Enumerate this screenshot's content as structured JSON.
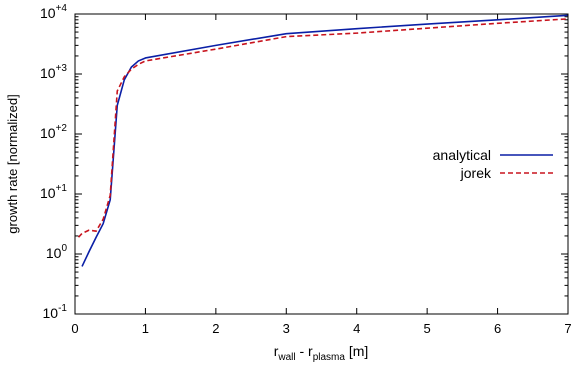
{
  "chart_data": {
    "type": "line",
    "title": "",
    "xlabel": {
      "base": "r",
      "sub1": "wall",
      "mid": " - r",
      "sub2": "plasma",
      "unit": " [m]"
    },
    "ylabel": "growth rate [normalized]",
    "xlim": [
      0,
      7
    ],
    "ylim": [
      0.1,
      10000
    ],
    "yscale": "log",
    "xticks": [
      "0",
      "1",
      "2",
      "3",
      "4",
      "5",
      "6",
      "7"
    ],
    "yticks": [
      {
        "base": "10",
        "exp": "-1"
      },
      {
        "base": "10",
        "exp": "0"
      },
      {
        "base": "10",
        "exp": "+1"
      },
      {
        "base": "10",
        "exp": "+2"
      },
      {
        "base": "10",
        "exp": "+3"
      },
      {
        "base": "10",
        "exp": "+4"
      }
    ],
    "legend_position": "right",
    "grid": false,
    "series": [
      {
        "name": "analytical",
        "color": "#0a1fa6",
        "style": "solid",
        "x": [
          0.1,
          0.2,
          0.3,
          0.4,
          0.5,
          0.6,
          0.7,
          0.8,
          0.9,
          1.0,
          2.0,
          3.0,
          4.0,
          5.0,
          6.0,
          7.0
        ],
        "y": [
          0.62,
          1.1,
          1.9,
          3.2,
          8.0,
          300,
          800,
          1300,
          1650,
          1850,
          3000,
          4700,
          5700,
          6800,
          8000,
          9500
        ]
      },
      {
        "name": "jorek",
        "color": "#c8141e",
        "style": "dashed",
        "x": [
          0.05,
          0.1,
          0.2,
          0.3,
          0.4,
          0.5,
          0.6,
          0.7,
          0.8,
          0.9,
          1.0,
          2.0,
          3.0,
          4.0,
          5.0,
          6.0,
          7.0
        ],
        "y": [
          1.9,
          2.2,
          2.5,
          2.4,
          3.8,
          9.5,
          520,
          900,
          1200,
          1450,
          1650,
          2600,
          4200,
          4800,
          5800,
          7000,
          8300
        ]
      }
    ]
  }
}
